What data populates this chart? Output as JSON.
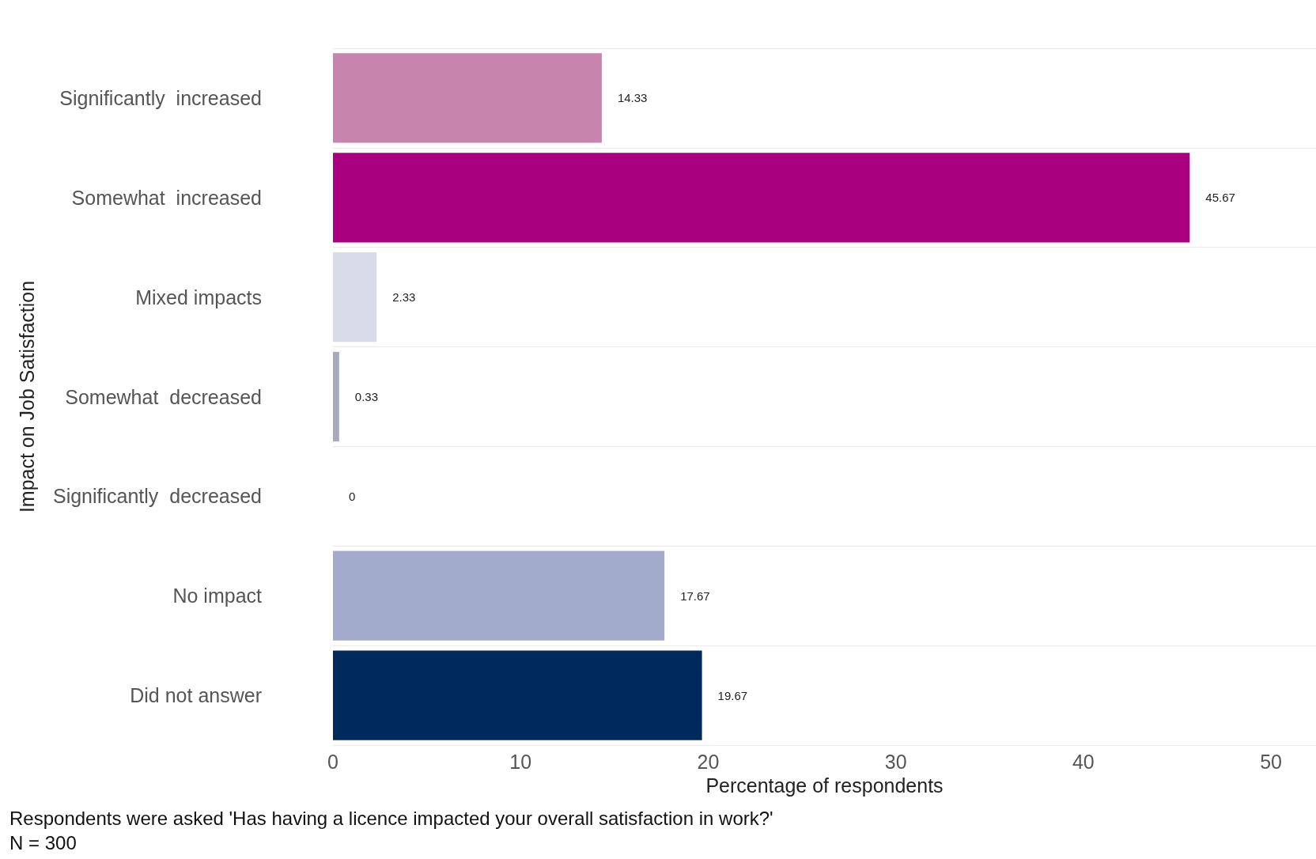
{
  "chart_data": {
    "type": "bar",
    "orientation": "horizontal",
    "xlabel": "Percentage of respondents",
    "ylabel": "Impact on Job Satisfaction",
    "categories": [
      "Significantly  increased",
      "Somewhat  increased",
      "Mixed impacts",
      "Somewhat  decreased",
      "Significantly  decreased",
      "No impact",
      "Did not answer"
    ],
    "values": [
      14.33,
      45.67,
      2.33,
      0.33,
      0,
      17.67,
      19.67
    ],
    "colors": [
      "#c785ae",
      "#a8007e",
      "#d9dbe8",
      "#a8a8bf",
      "#9da6c7",
      "#a2abcb",
      "#002a5c"
    ],
    "xlim": [
      0,
      52.4
    ],
    "xticks": [
      0,
      10,
      20,
      30,
      40,
      50
    ],
    "grid": "y",
    "data_labels": true,
    "annotations": [
      "Respondents were asked 'Has having a licence impacted your overall satisfaction in work?'",
      "N = 300"
    ]
  }
}
